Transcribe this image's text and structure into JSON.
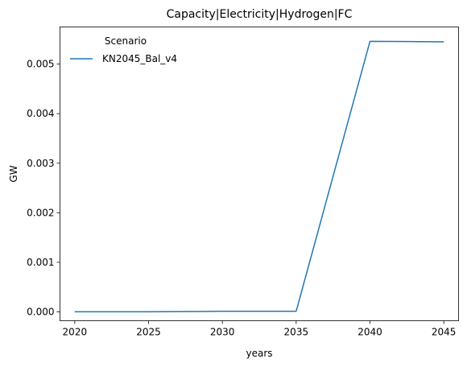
{
  "chart_data": {
    "type": "line",
    "title": "Capacity|Electricity|Hydrogen|FC",
    "xlabel": "years",
    "ylabel": "GW",
    "x": [
      2020,
      2025,
      2030,
      2035,
      2040,
      2045
    ],
    "series": [
      {
        "name": "KN2045_Bal_v4",
        "color": "#1f77b4",
        "values": [
          0.0,
          0.0,
          1e-05,
          1e-05,
          0.00546,
          0.00545
        ]
      }
    ],
    "xlim": [
      2019,
      2046
    ],
    "ylim": [
      -0.00018,
      0.00575
    ],
    "xticks": [
      "2020",
      "2025",
      "2030",
      "2035",
      "2040",
      "2045"
    ],
    "yticks": [
      "0.000",
      "0.001",
      "0.002",
      "0.003",
      "0.004",
      "0.005"
    ],
    "legend": {
      "title": "Scenario",
      "placement": "top-left"
    },
    "grid": false
  }
}
